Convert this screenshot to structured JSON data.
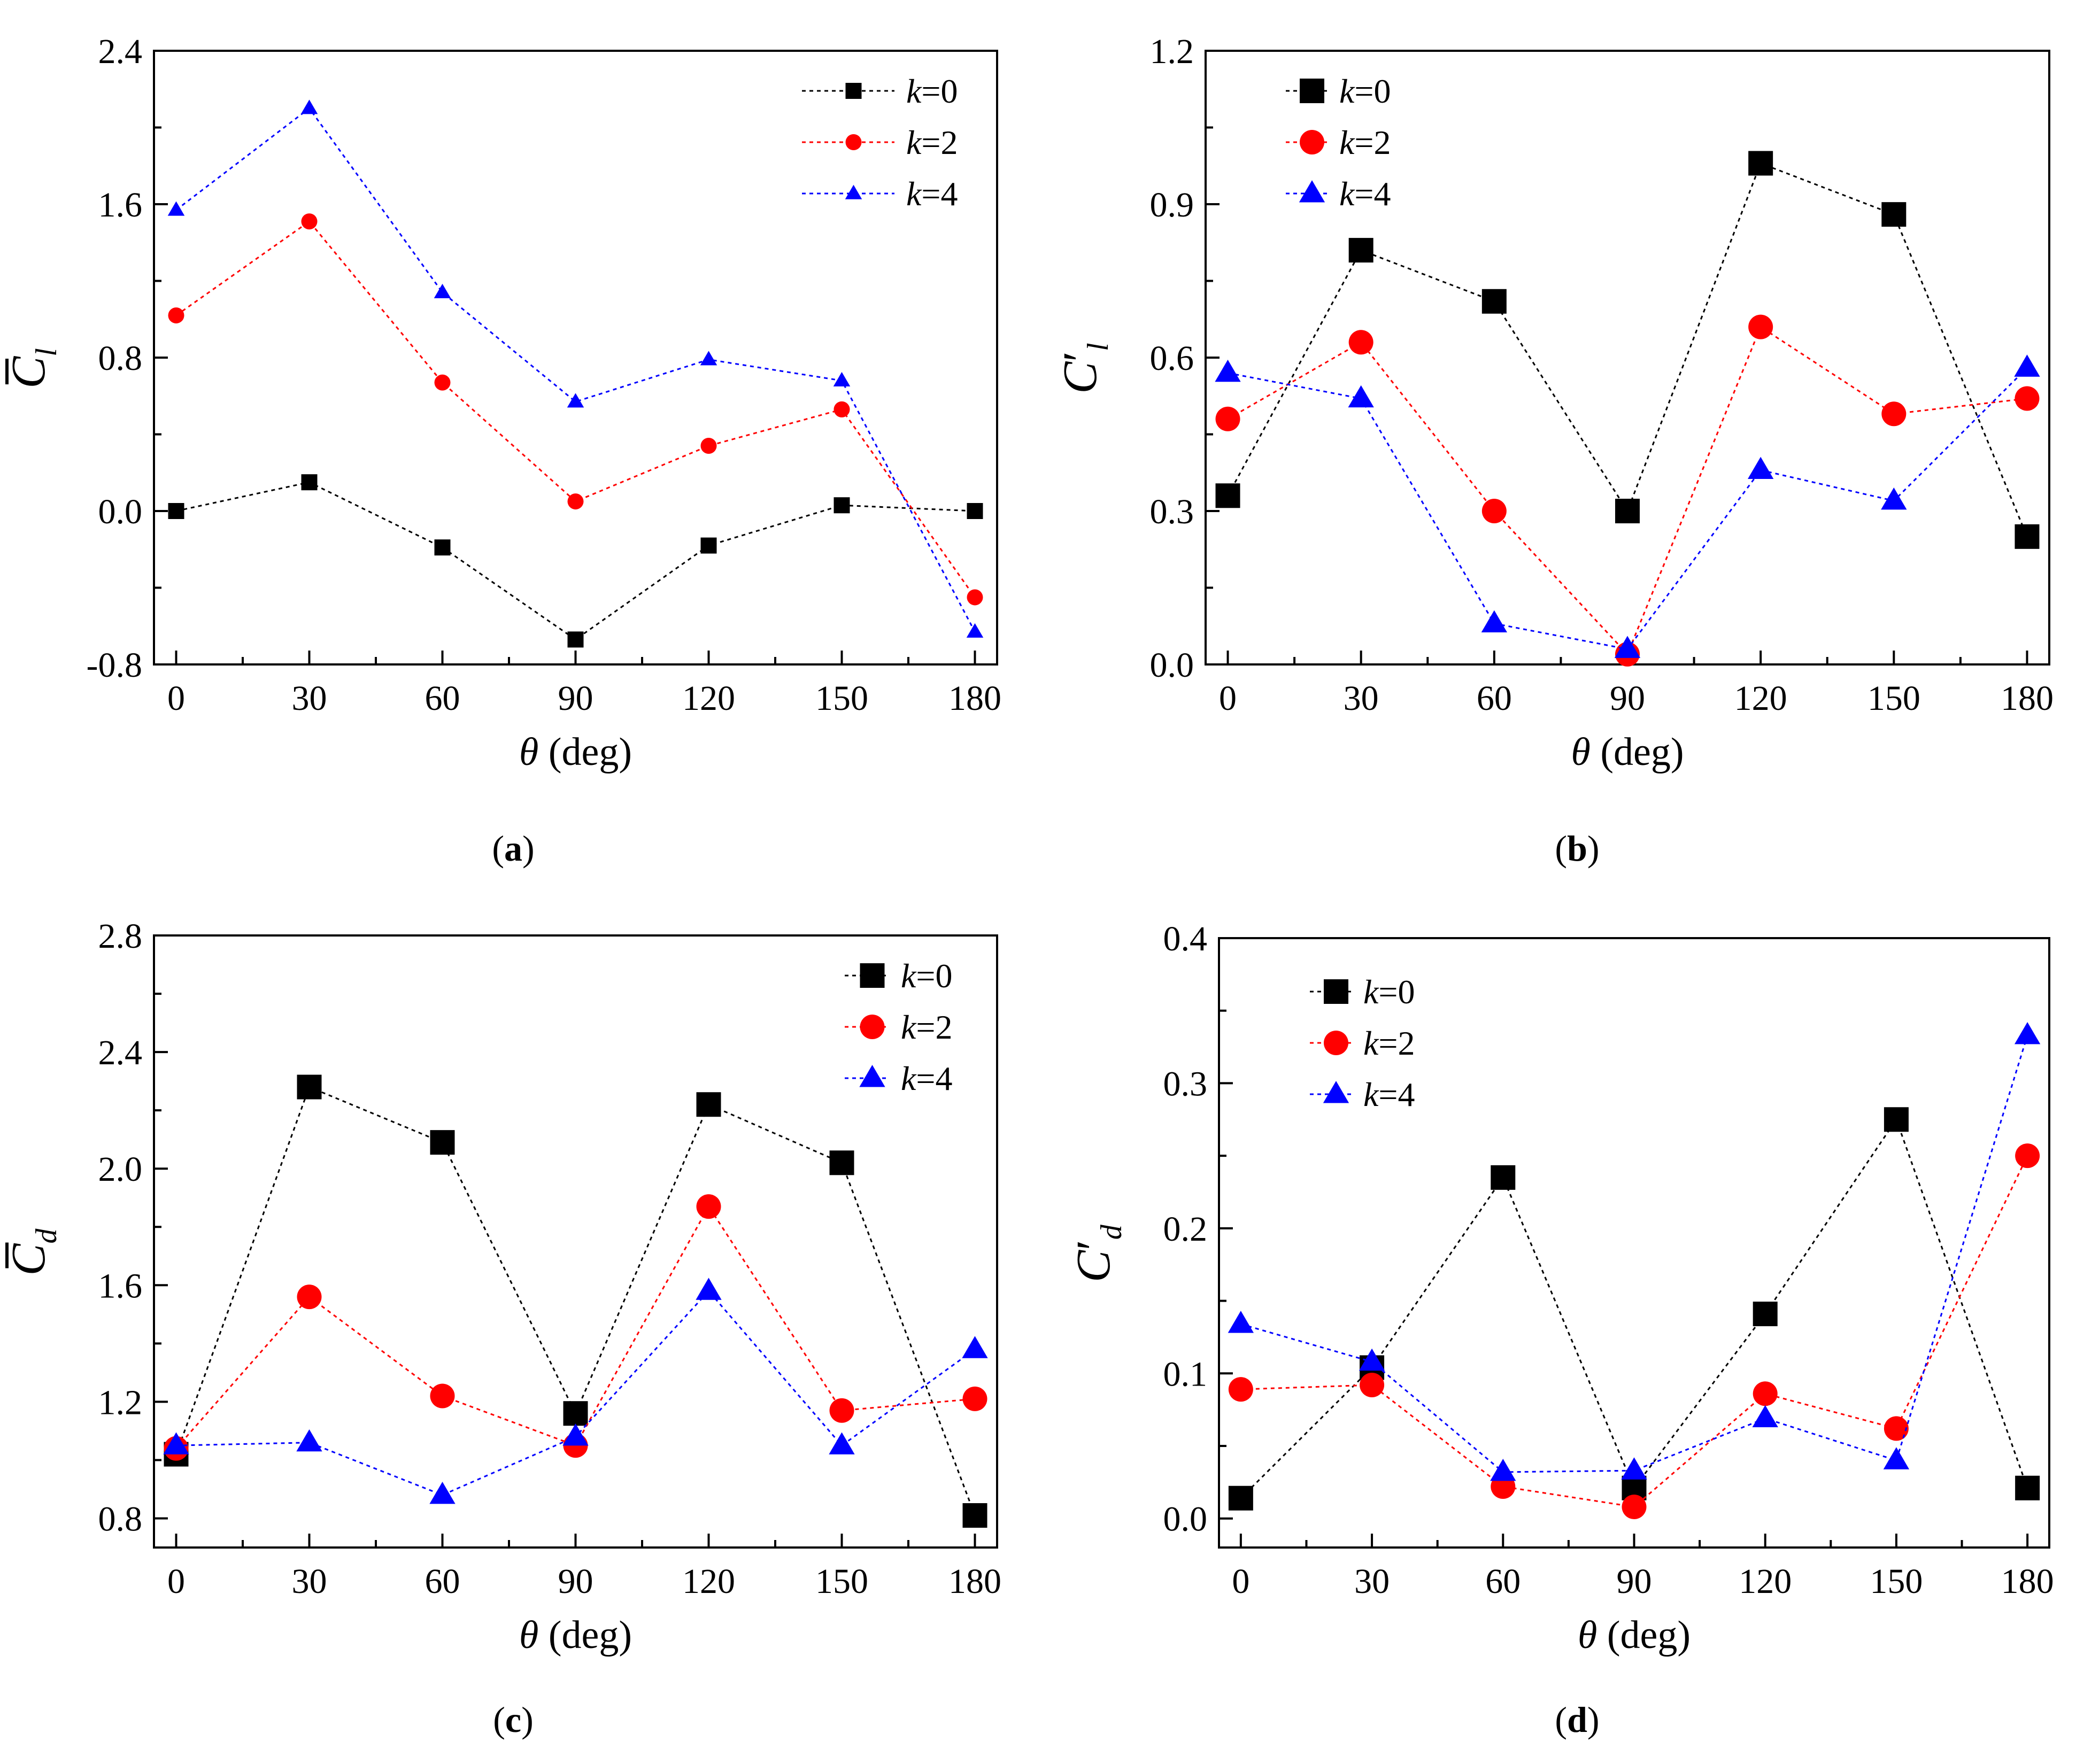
{
  "figure": {
    "x_title_symbol": "θ",
    "x_title_units": "(deg)",
    "legend_k": "k",
    "legend_equals": "=",
    "colors": {
      "k0": "#000000",
      "k2": "#ff0000",
      "k4": "#0000ff"
    }
  },
  "chart_data": [
    {
      "type": "line",
      "panel": "a",
      "panel_label": "(a)",
      "ylabel": "C̄l",
      "ylabel_main": "C",
      "ylabel_sub": "l",
      "ylabel_decoration": "bar",
      "xlabel": "θ (deg)",
      "x": [
        0,
        30,
        60,
        90,
        120,
        150,
        180
      ],
      "xlim": [
        -5,
        185
      ],
      "ylim": [
        -0.8,
        2.4
      ],
      "yticks": [
        -0.8,
        0.0,
        0.8,
        1.6,
        2.4
      ],
      "ytick_labels": [
        "-0.8",
        "0.0",
        "0.8",
        "1.6",
        "2.4"
      ],
      "xtick_labels": [
        "0",
        "30",
        "60",
        "90",
        "120",
        "150",
        "180"
      ],
      "legend_position": "top-right",
      "series": [
        {
          "name": "k=0",
          "k_value": "0",
          "marker": "square",
          "values": [
            0.0,
            0.15,
            -0.19,
            -0.67,
            -0.18,
            0.03,
            0.0
          ]
        },
        {
          "name": "k=2",
          "k_value": "2",
          "marker": "circle",
          "values": [
            1.02,
            1.51,
            0.67,
            0.05,
            0.34,
            0.53,
            -0.45
          ]
        },
        {
          "name": "k=4",
          "k_value": "4",
          "marker": "triangle",
          "values": [
            1.57,
            2.1,
            1.14,
            0.57,
            0.79,
            0.68,
            -0.63
          ]
        }
      ]
    },
    {
      "type": "line",
      "panel": "b",
      "panel_label": "(b)",
      "ylabel": "C′l",
      "ylabel_main": "C",
      "ylabel_sub": "l",
      "ylabel_decoration": "prime",
      "xlabel": "θ (deg)",
      "x": [
        0,
        30,
        60,
        90,
        120,
        150,
        180
      ],
      "xlim": [
        -5,
        185
      ],
      "ylim": [
        0.0,
        1.2
      ],
      "yticks": [
        0.0,
        0.3,
        0.6,
        0.9,
        1.2
      ],
      "ytick_labels": [
        "0.0",
        "0.3",
        "0.6",
        "0.9",
        "1.2"
      ],
      "xtick_labels": [
        "0",
        "30",
        "60",
        "90",
        "120",
        "150",
        "180"
      ],
      "legend_position": "top-left",
      "series": [
        {
          "name": "k=0",
          "k_value": "0",
          "marker": "square",
          "values": [
            0.33,
            0.81,
            0.71,
            0.3,
            0.98,
            0.88,
            0.25
          ]
        },
        {
          "name": "k=2",
          "k_value": "2",
          "marker": "circle",
          "values": [
            0.48,
            0.63,
            0.3,
            0.02,
            0.66,
            0.49,
            0.52
          ]
        },
        {
          "name": "k=4",
          "k_value": "4",
          "marker": "triangle",
          "values": [
            0.57,
            0.52,
            0.08,
            0.03,
            0.38,
            0.32,
            0.58
          ]
        }
      ]
    },
    {
      "type": "line",
      "panel": "c",
      "panel_label": "(c)",
      "ylabel": "C̄d",
      "ylabel_main": "C",
      "ylabel_sub": "d",
      "ylabel_decoration": "bar",
      "xlabel": "θ (deg)",
      "x": [
        0,
        30,
        60,
        90,
        120,
        150,
        180
      ],
      "xlim": [
        -5,
        185
      ],
      "ylim": [
        0.7,
        2.8
      ],
      "yticks": [
        0.8,
        1.2,
        1.6,
        2.0,
        2.4,
        2.8
      ],
      "ytick_labels": [
        "0.8",
        "1.2",
        "1.6",
        "2.0",
        "2.4",
        "2.8"
      ],
      "xtick_labels": [
        "0",
        "30",
        "60",
        "90",
        "120",
        "150",
        "180"
      ],
      "legend_position": "top-right",
      "series": [
        {
          "name": "k=0",
          "k_value": "0",
          "marker": "square",
          "values": [
            1.02,
            2.28,
            2.09,
            1.16,
            2.22,
            2.02,
            0.81
          ]
        },
        {
          "name": "k=2",
          "k_value": "2",
          "marker": "circle",
          "values": [
            1.04,
            1.56,
            1.22,
            1.05,
            1.87,
            1.17,
            1.21
          ]
        },
        {
          "name": "k=4",
          "k_value": "4",
          "marker": "triangle",
          "values": [
            1.05,
            1.06,
            0.88,
            1.08,
            1.58,
            1.05,
            1.38
          ]
        }
      ]
    },
    {
      "type": "line",
      "panel": "d",
      "panel_label": "(d)",
      "ylabel": "C′d",
      "ylabel_main": "C",
      "ylabel_sub": "d",
      "ylabel_decoration": "prime",
      "xlabel": "θ (deg)",
      "x": [
        0,
        30,
        60,
        90,
        120,
        150,
        180
      ],
      "xlim": [
        -5,
        185
      ],
      "ylim": [
        -0.02,
        0.4
      ],
      "yticks": [
        0.0,
        0.1,
        0.2,
        0.3,
        0.4
      ],
      "ytick_labels": [
        "0.0",
        "0.1",
        "0.2",
        "0.3",
        "0.4"
      ],
      "xtick_labels": [
        "0",
        "30",
        "60",
        "90",
        "120",
        "150",
        "180"
      ],
      "legend_position": "top-left",
      "series": [
        {
          "name": "k=0",
          "k_value": "0",
          "marker": "square",
          "values": [
            0.014,
            0.104,
            0.235,
            0.021,
            0.141,
            0.275,
            0.021
          ]
        },
        {
          "name": "k=2",
          "k_value": "2",
          "marker": "circle",
          "values": [
            0.089,
            0.092,
            0.022,
            0.008,
            0.086,
            0.062,
            0.25
          ]
        },
        {
          "name": "k=4",
          "k_value": "4",
          "marker": "triangle",
          "values": [
            0.134,
            0.108,
            0.032,
            0.033,
            0.069,
            0.04,
            0.333
          ]
        }
      ]
    }
  ]
}
